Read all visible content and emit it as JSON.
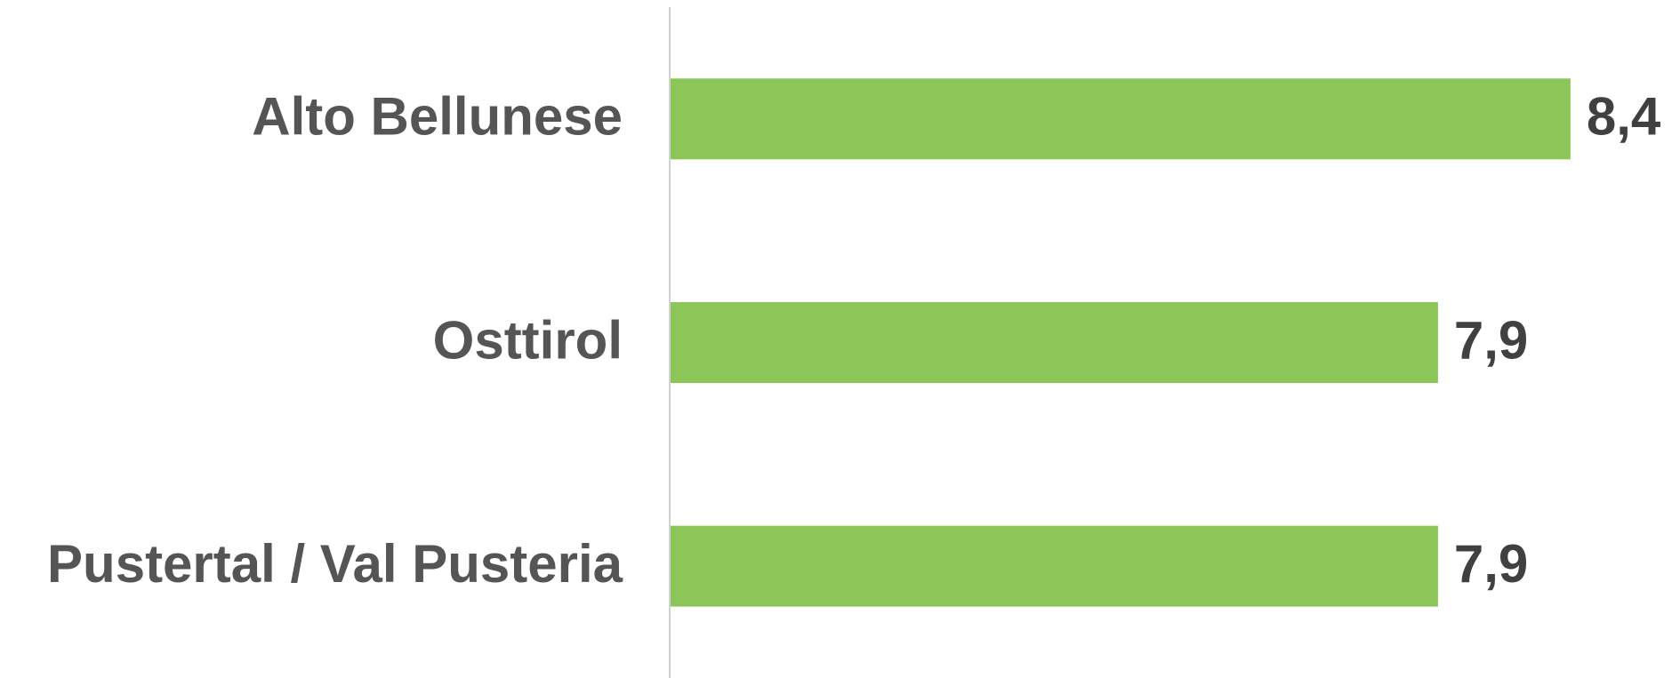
{
  "chart_data": {
    "type": "hbar",
    "categories": [
      "Alto Bellunese",
      "Osttirol",
      "Pustertal / Val Pusteria"
    ],
    "values": [
      8.4,
      7.9,
      7.9
    ],
    "value_labels": [
      "8,4",
      "7,9",
      "7,9"
    ],
    "color": "#8cc658",
    "xlim": [
      5,
      8.8
    ]
  }
}
